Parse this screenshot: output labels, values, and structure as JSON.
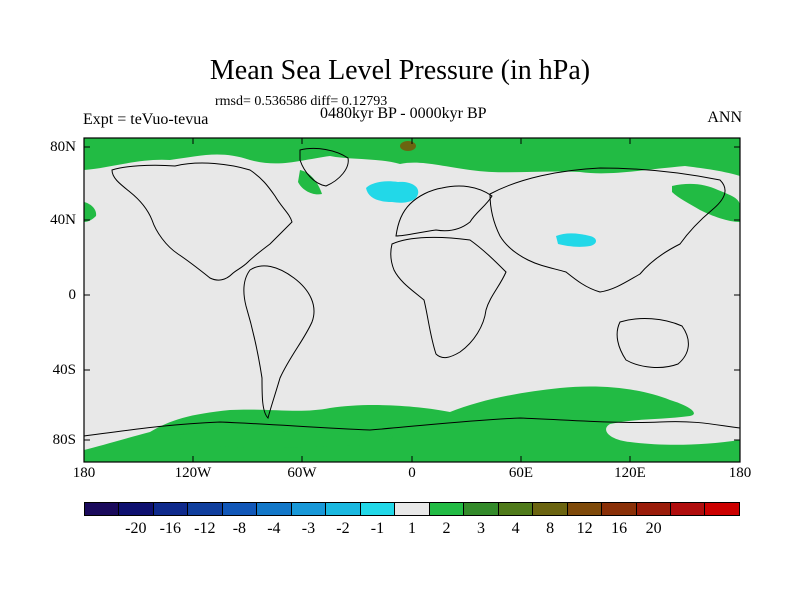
{
  "title": "Mean Sea Level Pressure (in hPa)",
  "stats": "rmsd= 0.536586 diff= 0.12793",
  "period": "0480kyr BP - 0000kyr BP",
  "experiment": "Expt = teVuo-tevua",
  "season": "ANN",
  "lat_labels": [
    "80N",
    "40N",
    "0",
    "40S",
    "80S"
  ],
  "lon_labels": [
    "180",
    "120W",
    "60W",
    "0",
    "60E",
    "120E",
    "180"
  ],
  "colorbar": {
    "colors": [
      "#1a0a5c",
      "#0e1070",
      "#0f2a8c",
      "#103f9e",
      "#1157b8",
      "#1277c8",
      "#1898d8",
      "#1ab8e0",
      "#22d8e8",
      "#e8e8e8",
      "#22bb44",
      "#338a2a",
      "#4f7a1a",
      "#6b6410",
      "#7f4a0a",
      "#8a3008",
      "#9a1c0a",
      "#b00d0d",
      "#cc0000"
    ],
    "labels": [
      "-20",
      "-16",
      "-12",
      "-8",
      "-4",
      "-3",
      "-2",
      "-1",
      "1",
      "2",
      "3",
      "4",
      "8",
      "12",
      "16",
      "20"
    ]
  },
  "colors": {
    "land_sea_neutral": "#e8e8e8",
    "positive_1_2": "#22bb44",
    "positive_3_4": "#6b6410",
    "negative_2_1": "#22d8e8"
  }
}
